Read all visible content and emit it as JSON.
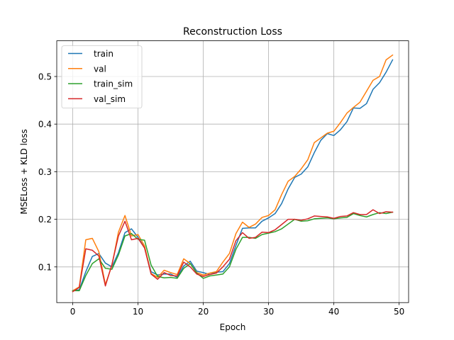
{
  "chart_data": {
    "type": "line",
    "title": "Reconstruction Loss",
    "xlabel": "Epoch",
    "ylabel": "MSELoss + KLD loss",
    "xlim": [
      -2.45,
      51.45
    ],
    "ylim": [
      0.025,
      0.575
    ],
    "xticks": [
      0,
      10,
      20,
      30,
      40,
      50
    ],
    "yticks": [
      0.1,
      0.2,
      0.3,
      0.4,
      0.5
    ],
    "ytick_labels": [
      "0.1",
      "0.2",
      "0.3",
      "0.4",
      "0.5"
    ],
    "grid": true,
    "legend_position": "upper-left",
    "x": [
      0,
      1,
      2,
      3,
      4,
      5,
      6,
      7,
      8,
      9,
      10,
      11,
      12,
      13,
      14,
      15,
      16,
      17,
      18,
      19,
      20,
      21,
      22,
      23,
      24,
      25,
      26,
      27,
      28,
      29,
      30,
      31,
      32,
      33,
      34,
      35,
      36,
      37,
      38,
      39,
      40,
      41,
      42,
      43,
      44,
      45,
      46,
      47,
      48,
      49
    ],
    "series": [
      {
        "name": "train",
        "color": "#1f77b4",
        "values": [
          0.05,
          0.052,
          0.09,
          0.122,
          0.128,
          0.108,
          0.1,
          0.13,
          0.172,
          0.18,
          0.162,
          0.14,
          0.09,
          0.083,
          0.085,
          0.085,
          0.078,
          0.102,
          0.112,
          0.091,
          0.088,
          0.084,
          0.089,
          0.09,
          0.107,
          0.145,
          0.181,
          0.182,
          0.182,
          0.196,
          0.203,
          0.212,
          0.233,
          0.264,
          0.288,
          0.295,
          0.31,
          0.34,
          0.366,
          0.38,
          0.376,
          0.388,
          0.405,
          0.434,
          0.433,
          0.443,
          0.473,
          0.487,
          0.509,
          0.535
        ]
      },
      {
        "name": "val",
        "color": "#ff7f0e",
        "values": [
          0.05,
          0.058,
          0.157,
          0.16,
          0.132,
          0.063,
          0.103,
          0.173,
          0.208,
          0.165,
          0.168,
          0.144,
          0.086,
          0.078,
          0.093,
          0.088,
          0.084,
          0.117,
          0.107,
          0.088,
          0.083,
          0.087,
          0.09,
          0.11,
          0.128,
          0.17,
          0.194,
          0.183,
          0.19,
          0.204,
          0.208,
          0.22,
          0.252,
          0.28,
          0.29,
          0.306,
          0.325,
          0.361,
          0.371,
          0.381,
          0.385,
          0.403,
          0.423,
          0.435,
          0.446,
          0.469,
          0.492,
          0.5,
          0.535,
          0.545
        ]
      },
      {
        "name": "train_sim",
        "color": "#2ca02c",
        "values": [
          0.05,
          0.05,
          0.082,
          0.107,
          0.117,
          0.097,
          0.095,
          0.125,
          0.165,
          0.17,
          0.158,
          0.156,
          0.104,
          0.08,
          0.077,
          0.078,
          0.076,
          0.097,
          0.107,
          0.087,
          0.076,
          0.081,
          0.083,
          0.085,
          0.1,
          0.137,
          0.162,
          0.162,
          0.16,
          0.168,
          0.171,
          0.174,
          0.18,
          0.19,
          0.2,
          0.196,
          0.197,
          0.201,
          0.202,
          0.203,
          0.201,
          0.203,
          0.204,
          0.212,
          0.208,
          0.205,
          0.21,
          0.214,
          0.212,
          0.215
        ]
      },
      {
        "name": "val_sim",
        "color": "#d62728",
        "values": [
          0.048,
          0.057,
          0.138,
          0.135,
          0.123,
          0.06,
          0.105,
          0.165,
          0.196,
          0.157,
          0.16,
          0.14,
          0.085,
          0.074,
          0.088,
          0.082,
          0.081,
          0.11,
          0.1,
          0.085,
          0.08,
          0.084,
          0.087,
          0.1,
          0.116,
          0.155,
          0.172,
          0.16,
          0.162,
          0.173,
          0.172,
          0.178,
          0.189,
          0.2,
          0.2,
          0.198,
          0.201,
          0.207,
          0.206,
          0.205,
          0.202,
          0.206,
          0.207,
          0.214,
          0.21,
          0.21,
          0.22,
          0.212,
          0.216,
          0.215
        ]
      }
    ]
  }
}
